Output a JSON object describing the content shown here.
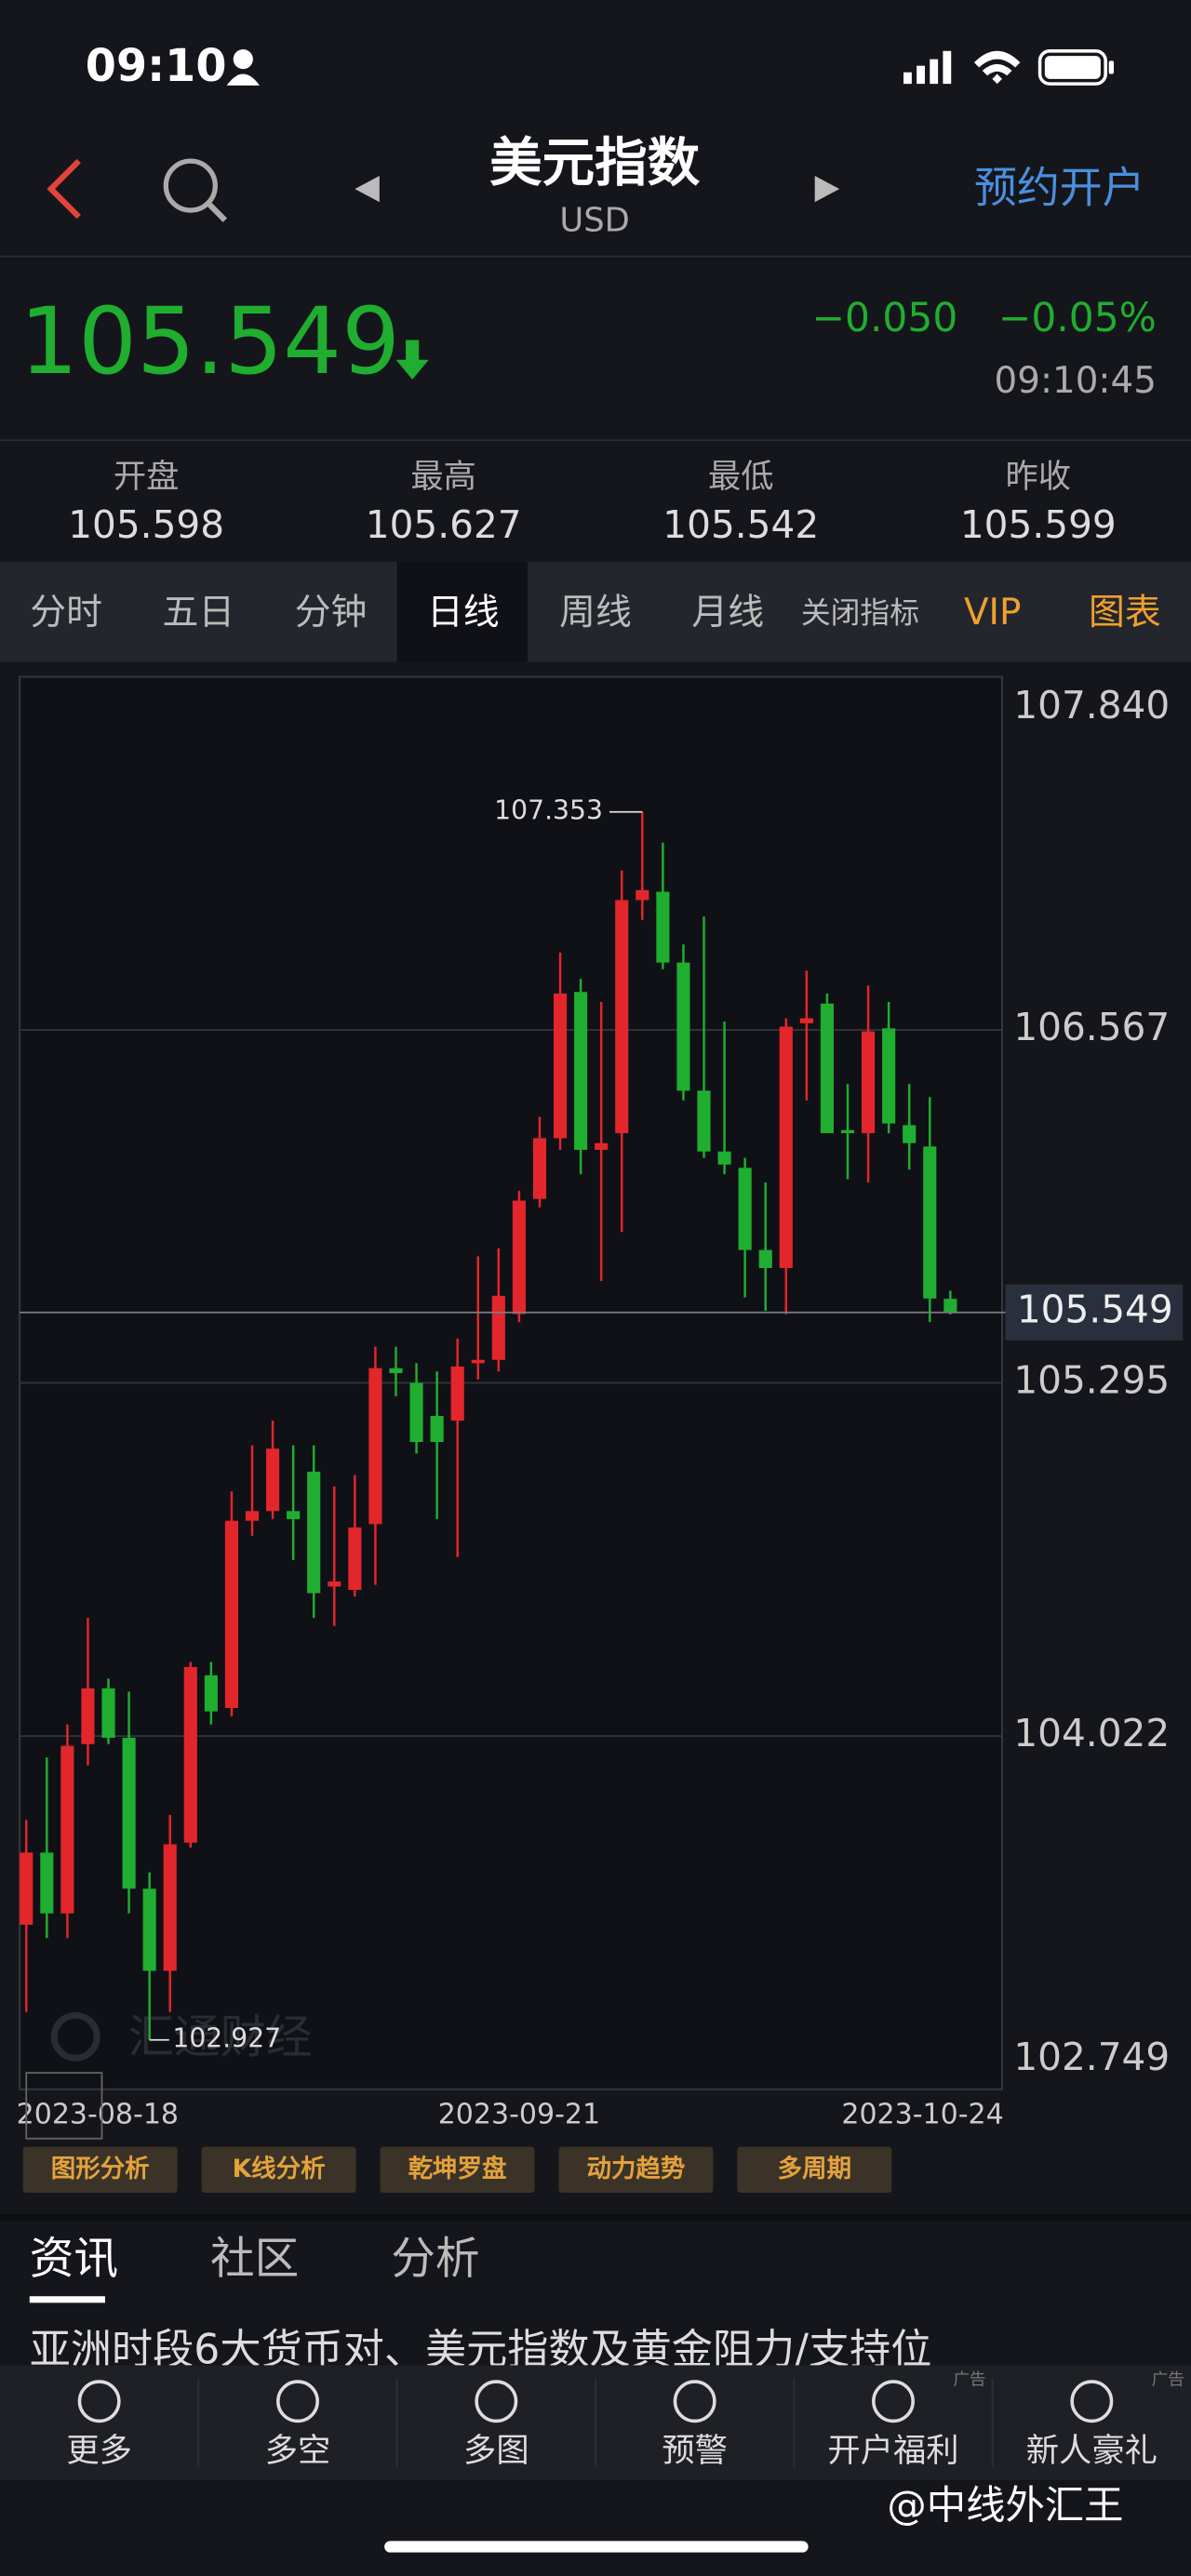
{
  "status": {
    "time": "09:10"
  },
  "header": {
    "title": "美元指数",
    "subtitle": "USD",
    "action": "预约开户"
  },
  "quote": {
    "price": "105.549",
    "change": "−0.050",
    "change_pct": "−0.05%",
    "time": "09:10:45"
  },
  "stats": [
    {
      "label": "开盘",
      "value": "105.598"
    },
    {
      "label": "最高",
      "value": "105.627"
    },
    {
      "label": "最低",
      "value": "105.542"
    },
    {
      "label": "昨收",
      "value": "105.599"
    }
  ],
  "tabs": [
    "分时",
    "五日",
    "分钟",
    "日线",
    "周线",
    "月线",
    "关闭指标",
    "VIP",
    "图表"
  ],
  "chart_data": {
    "type": "candlestick",
    "categories": [
      "2023-08-18",
      null,
      null,
      null,
      null,
      null,
      null,
      null,
      null,
      null,
      null,
      null,
      null,
      null,
      null,
      null,
      null,
      null,
      null,
      null,
      null,
      null,
      null,
      null,
      "2023-09-21",
      null,
      null,
      null,
      null,
      null,
      null,
      null,
      null,
      null,
      null,
      null,
      null,
      null,
      null,
      null,
      null,
      null,
      null,
      null,
      null,
      "2023-10-24"
    ],
    "open": [
      103.342,
      103.602,
      103.383,
      103.993,
      104.194,
      104.016,
      103.472,
      103.176,
      103.638,
      104.241,
      104.123,
      104.798,
      104.833,
      104.833,
      104.975,
      104.561,
      104.549,
      104.786,
      105.348,
      105.295,
      105.176,
      105.159,
      105.366,
      105.378,
      105.543,
      105.958,
      106.177,
      106.704,
      106.135,
      106.195,
      107.035,
      107.065,
      106.81,
      106.348,
      106.129,
      106.07,
      105.774,
      105.709,
      106.591,
      106.662,
      106.206,
      106.195,
      106.573,
      106.224,
      106.147,
      105.598
    ],
    "high": [
      103.72,
      103.945,
      104.064,
      104.448,
      104.229,
      104.182,
      103.531,
      103.738,
      104.289,
      104.289,
      104.904,
      105.07,
      105.159,
      105.07,
      105.07,
      104.922,
      104.963,
      105.425,
      105.425,
      105.366,
      105.336,
      105.455,
      105.751,
      105.78,
      105.987,
      106.254,
      106.846,
      106.751,
      106.668,
      107.142,
      107.353,
      107.242,
      106.875,
      106.976,
      106.597,
      106.106,
      106.017,
      106.609,
      106.781,
      106.698,
      106.372,
      106.727,
      106.668,
      106.372,
      106.325,
      105.627
    ],
    "low": [
      103.028,
      103.294,
      103.294,
      103.916,
      103.993,
      103.383,
      102.927,
      103.028,
      103.62,
      104.064,
      104.093,
      104.744,
      104.804,
      104.656,
      104.448,
      104.419,
      104.525,
      104.567,
      105.247,
      105.04,
      104.804,
      104.667,
      105.307,
      105.336,
      105.514,
      105.928,
      106.135,
      106.047,
      105.662,
      105.839,
      106.964,
      106.786,
      106.313,
      106.106,
      106.047,
      105.603,
      105.555,
      105.543,
      106.313,
      106.195,
      106.029,
      106.017,
      106.195,
      106.064,
      105.514,
      105.542
    ],
    "close": [
      103.602,
      103.383,
      103.987,
      104.194,
      104.016,
      103.472,
      103.176,
      103.632,
      104.271,
      104.111,
      104.798,
      104.833,
      105.058,
      104.804,
      104.537,
      104.579,
      104.774,
      105.348,
      105.33,
      105.082,
      105.082,
      105.354,
      105.378,
      105.609,
      105.952,
      106.177,
      106.698,
      106.135,
      106.159,
      107.035,
      107.071,
      106.81,
      106.348,
      106.129,
      106.082,
      105.774,
      105.709,
      106.579,
      106.609,
      106.195,
      106.195,
      106.562,
      106.23,
      106.159,
      105.599,
      105.549
    ],
    "up_color": "#e3262b",
    "down_color": "#1fae30",
    "ylim": [
      102.749,
      107.84
    ],
    "yticks": [
      102.749,
      104.022,
      105.295,
      106.567,
      {
        "value": 107.84,
        "label": "107.840"
      }
    ],
    "grid": true
  },
  "watermark": "汇通财经",
  "indicators": [
    "图形分析",
    "K线分析",
    "乾坤罗盘",
    "动力趋势",
    "多周期"
  ],
  "news_tabs": [
    "资讯",
    "社区",
    "分析"
  ],
  "headline": "亚洲时段6大货币对、美元指数及黄金阻力/支持位",
  "nav": [
    "更多",
    "多空",
    "多图",
    "预警",
    "开户福利",
    "新人豪礼"
  ],
  "ad_label": "广告",
  "credit": "@中线外汇王"
}
